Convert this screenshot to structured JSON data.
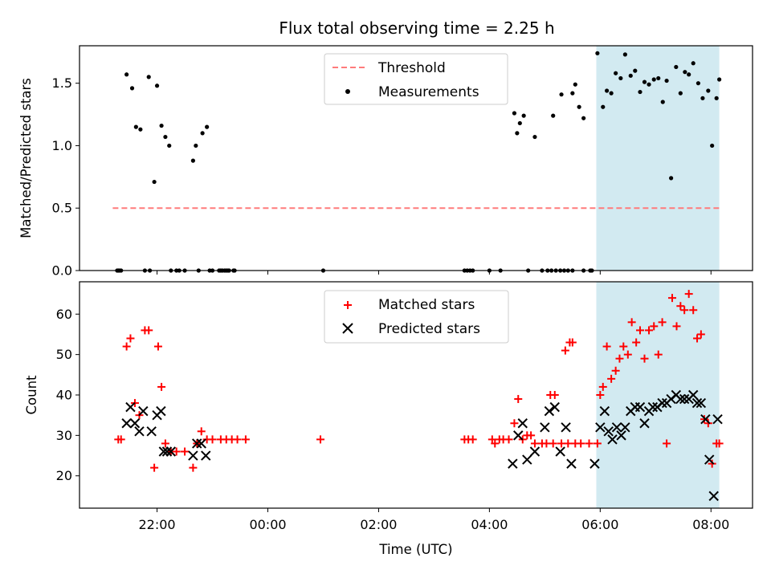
{
  "title": "Flux total observing time = 2.25 h",
  "xlabel": "Time (UTC)",
  "colors": {
    "threshold": "#ff7b7b",
    "measurement": "#000000",
    "matched": "#ff0000",
    "predicted": "#000000",
    "shade": "#add8e6"
  },
  "x_ticks": [
    "22:00",
    "00:00",
    "02:00",
    "04:00",
    "06:00",
    "08:00"
  ],
  "chart_data": [
    {
      "type": "scatter",
      "ylabel": "Matched/Predicted stars",
      "xlim": [
        20.6,
        32.75
      ],
      "ylim": [
        0,
        1.8
      ],
      "y_ticks": [
        "0.0",
        "0.5",
        "1.0",
        "1.5"
      ],
      "x_unit": "hours since 00:00 UTC of first night (24 = 00:00 next day)",
      "shaded_interval": [
        29.93,
        32.15
      ],
      "legend": {
        "position": "upper center",
        "threshold_label": "Threshold",
        "measurements_label": "Measurements"
      },
      "threshold": {
        "y": 0.5,
        "x": [
          21.2,
          32.15
        ]
      },
      "measurements": {
        "x": [
          21.3,
          21.35,
          21.45,
          21.55,
          21.62,
          21.7,
          21.85,
          21.87,
          21.95,
          22.0,
          22.08,
          22.15,
          22.22,
          22.35,
          22.5,
          22.65,
          22.7,
          22.75,
          22.82,
          22.9,
          23.0,
          23.15,
          23.25,
          23.3,
          23.4,
          25.0,
          27.6,
          27.65,
          27.7,
          28.45,
          28.5,
          28.55,
          28.62,
          28.7,
          28.82,
          29.15,
          29.3,
          29.5,
          29.55,
          29.62,
          29.7,
          29.82,
          29.95,
          30.05,
          30.12,
          30.2,
          30.28,
          30.37,
          30.45,
          30.55,
          30.63,
          30.72,
          30.8,
          30.88,
          30.97,
          31.05,
          31.13,
          31.2,
          31.28,
          31.37,
          31.45,
          31.53,
          31.6,
          31.68,
          31.77,
          31.85,
          31.95,
          32.02,
          32.1,
          32.15,
          21.28,
          21.32,
          21.78,
          22.25,
          22.4,
          22.95,
          23.12,
          23.18,
          23.22,
          23.28,
          23.38,
          27.55,
          28.0,
          28.2,
          28.95,
          29.05,
          29.12,
          29.2,
          29.28,
          29.35,
          29.42,
          29.5,
          29.7,
          29.85
        ],
        "y": [
          0.0,
          0.0,
          1.57,
          1.46,
          1.15,
          1.13,
          1.55,
          0.0,
          0.71,
          1.48,
          1.16,
          1.07,
          1.0,
          0.0,
          0.0,
          0.88,
          1.0,
          0.0,
          1.1,
          1.15,
          0.0,
          0.0,
          0.0,
          0.0,
          0.0,
          0.0,
          0.0,
          0.0,
          0.0,
          1.26,
          1.1,
          1.18,
          1.24,
          0.0,
          1.07,
          1.24,
          1.41,
          1.42,
          1.49,
          1.31,
          1.22,
          0.0,
          1.74,
          1.31,
          1.44,
          1.42,
          1.58,
          1.54,
          1.73,
          1.56,
          1.6,
          1.43,
          1.51,
          1.49,
          1.53,
          1.54,
          1.35,
          1.52,
          0.74,
          1.63,
          1.42,
          1.59,
          1.57,
          1.66,
          1.5,
          1.38,
          1.44,
          1.0,
          1.38,
          1.53,
          0.0,
          0.0,
          0.0,
          0.0,
          0.0,
          0.0,
          0.0,
          0.0,
          0.0,
          0.0,
          0.0,
          0.0,
          0.0,
          0.0,
          0.0,
          0.0,
          0.0,
          0.0,
          0.0,
          0.0,
          0.0,
          0.0,
          0.0,
          0.0
        ]
      }
    },
    {
      "type": "scatter",
      "ylabel": "Count",
      "xlim": [
        20.6,
        32.75
      ],
      "ylim": [
        12,
        68
      ],
      "y_ticks": [
        "20",
        "30",
        "40",
        "50",
        "60"
      ],
      "shaded_interval": [
        29.93,
        32.15
      ],
      "legend": {
        "position": "upper center"
      },
      "series": [
        {
          "name": "Matched stars",
          "marker": "+",
          "x": [
            21.3,
            21.35,
            21.45,
            21.52,
            21.6,
            21.68,
            21.78,
            21.85,
            21.95,
            22.02,
            22.08,
            22.15,
            22.25,
            22.35,
            22.5,
            22.65,
            22.72,
            22.8,
            22.9,
            23.0,
            23.15,
            23.25,
            23.35,
            23.45,
            23.6,
            24.95,
            27.55,
            27.62,
            27.7,
            28.05,
            28.18,
            28.25,
            28.35,
            28.45,
            28.52,
            28.6,
            28.68,
            28.75,
            28.82,
            29.15,
            29.3,
            29.42,
            29.55,
            29.65,
            29.8,
            29.95,
            30.0,
            30.05,
            30.12,
            30.2,
            30.28,
            30.35,
            30.42,
            30.5,
            30.57,
            30.65,
            30.72,
            30.8,
            30.88,
            30.97,
            31.05,
            31.12,
            31.2,
            31.3,
            31.38,
            31.45,
            31.52,
            31.6,
            31.68,
            31.75,
            31.82,
            31.88,
            31.95,
            32.02,
            32.1,
            32.15,
            28.1,
            28.95,
            29.03,
            29.1,
            29.18,
            29.37,
            29.45,
            29.5
          ],
          "y": [
            29,
            29,
            52,
            54,
            38,
            35,
            56,
            56,
            22,
            52,
            42,
            28,
            26,
            26,
            26,
            22,
            28,
            31,
            29,
            29,
            29,
            29,
            29,
            29,
            29,
            29,
            29,
            29,
            29,
            29,
            29,
            29,
            29,
            33,
            39,
            29,
            30,
            30,
            28,
            28,
            28,
            28,
            28,
            28,
            28,
            28,
            40,
            42,
            52,
            44,
            46,
            49,
            52,
            50,
            58,
            53,
            56,
            49,
            56,
            57,
            50,
            58,
            28,
            64,
            57,
            62,
            61,
            65,
            61,
            54,
            55,
            34,
            33,
            23,
            28,
            28,
            28,
            28,
            28,
            40,
            40,
            51,
            53,
            53
          ]
        },
        {
          "name": "Predicted stars",
          "marker": "x",
          "x": [
            21.45,
            21.52,
            21.6,
            21.68,
            21.75,
            21.9,
            22.0,
            22.07,
            22.12,
            22.18,
            22.25,
            22.65,
            22.72,
            22.8,
            22.88,
            28.42,
            28.52,
            28.6,
            28.68,
            28.82,
            29.0,
            29.08,
            29.18,
            29.28,
            29.38,
            29.48,
            29.9,
            30.0,
            30.08,
            30.15,
            30.22,
            30.3,
            30.38,
            30.45,
            30.55,
            30.63,
            30.72,
            30.8,
            30.88,
            30.95,
            31.03,
            31.12,
            31.2,
            31.28,
            31.37,
            31.45,
            31.52,
            31.6,
            31.68,
            31.75,
            31.82,
            31.9,
            31.97,
            32.05,
            32.12
          ],
          "y": [
            33,
            37,
            33,
            31,
            36,
            31,
            35,
            36,
            26,
            26,
            26,
            25,
            28,
            28,
            25,
            23,
            30,
            33,
            24,
            26,
            32,
            36,
            37,
            26,
            32,
            23,
            23,
            32,
            36,
            31,
            29,
            32,
            30,
            32,
            36,
            37,
            37,
            33,
            36,
            37,
            37,
            38,
            38,
            39,
            40,
            39,
            39,
            39,
            40,
            38,
            38,
            34,
            24,
            15,
            34
          ]
        }
      ]
    }
  ]
}
